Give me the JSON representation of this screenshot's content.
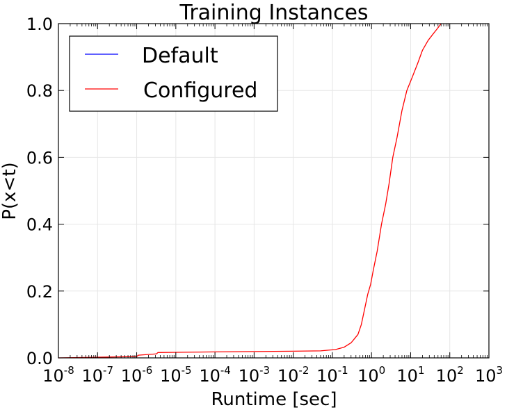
{
  "chart_data": {
    "type": "line",
    "title": "Training Instances",
    "xlabel": "Runtime [sec]",
    "ylabel": "P(x<t)",
    "xscale": "log",
    "xlim": [
      1e-08,
      1000
    ],
    "ylim": [
      0.0,
      1.0
    ],
    "grid": true,
    "legend_placement": "top-left",
    "x_ticks": [
      {
        "base": "10",
        "exp": "-8",
        "value": 1e-08
      },
      {
        "base": "10",
        "exp": "-7",
        "value": 1e-07
      },
      {
        "base": "10",
        "exp": "-6",
        "value": 1e-06
      },
      {
        "base": "10",
        "exp": "-5",
        "value": 1e-05
      },
      {
        "base": "10",
        "exp": "-4",
        "value": 0.0001
      },
      {
        "base": "10",
        "exp": "-3",
        "value": 0.001
      },
      {
        "base": "10",
        "exp": "-2",
        "value": 0.01
      },
      {
        "base": "10",
        "exp": "-1",
        "value": 0.1
      },
      {
        "base": "10",
        "exp": "0",
        "value": 1
      },
      {
        "base": "10",
        "exp": "1",
        "value": 10
      },
      {
        "base": "10",
        "exp": "2",
        "value": 100
      },
      {
        "base": "10",
        "exp": "3",
        "value": 1000
      }
    ],
    "y_ticks": [
      {
        "label": "0.0",
        "value": 0.0
      },
      {
        "label": "0.2",
        "value": 0.2
      },
      {
        "label": "0.4",
        "value": 0.4
      },
      {
        "label": "0.6",
        "value": 0.6
      },
      {
        "label": "0.8",
        "value": 0.8
      },
      {
        "label": "1.0",
        "value": 1.0
      }
    ],
    "series": [
      {
        "name": "Default",
        "color": "#0000ff",
        "points": []
      },
      {
        "name": "Configured",
        "color": "#ff0000",
        "points": [
          [
            1e-08,
            0.0
          ],
          [
            1e-07,
            0.002
          ],
          [
            1e-06,
            0.004
          ],
          [
            1.1e-06,
            0.008
          ],
          [
            3.2e-06,
            0.012
          ],
          [
            3.5e-06,
            0.016
          ],
          [
            0.0001,
            0.018
          ],
          [
            0.001,
            0.019
          ],
          [
            0.01,
            0.02
          ],
          [
            0.05,
            0.021
          ],
          [
            0.12,
            0.025
          ],
          [
            0.2,
            0.032
          ],
          [
            0.3,
            0.045
          ],
          [
            0.45,
            0.07
          ],
          [
            0.55,
            0.1
          ],
          [
            0.65,
            0.14
          ],
          [
            0.8,
            0.19
          ],
          [
            0.95,
            0.22
          ],
          [
            1.1,
            0.26
          ],
          [
            1.4,
            0.32
          ],
          [
            1.8,
            0.4
          ],
          [
            2.3,
            0.46
          ],
          [
            2.8,
            0.52
          ],
          [
            3.5,
            0.6
          ],
          [
            4.5,
            0.66
          ],
          [
            6,
            0.74
          ],
          [
            8,
            0.8
          ],
          [
            11,
            0.84
          ],
          [
            15,
            0.88
          ],
          [
            20,
            0.92
          ],
          [
            28,
            0.95
          ],
          [
            38,
            0.97
          ],
          [
            48,
            0.985
          ],
          [
            60,
            1.0
          ]
        ]
      }
    ]
  }
}
